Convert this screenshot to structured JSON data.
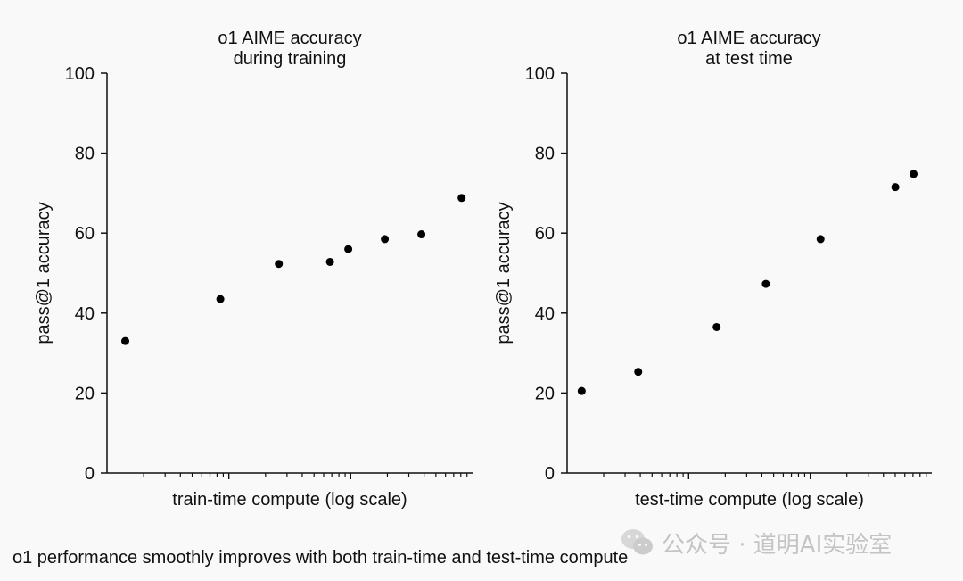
{
  "chart_data": [
    {
      "type": "scatter",
      "title_lines": [
        "o1 AIME accuracy",
        "during training"
      ],
      "xlabel": "train-time compute (log scale)",
      "ylabel": "pass@1 accuracy",
      "ylim": [
        0,
        100
      ],
      "yticks": [
        0,
        20,
        40,
        60,
        80,
        100
      ],
      "x_scale": "log",
      "points": [
        {
          "x": 0.05,
          "y": 33
        },
        {
          "x": 0.31,
          "y": 43.5
        },
        {
          "x": 0.47,
          "y": 52.3
        },
        {
          "x": 0.61,
          "y": 52.8
        },
        {
          "x": 0.66,
          "y": 56
        },
        {
          "x": 0.76,
          "y": 58.5
        },
        {
          "x": 0.86,
          "y": 59.7
        },
        {
          "x": 0.97,
          "y": 68.8
        }
      ],
      "point_color": "#000000"
    },
    {
      "type": "scatter",
      "title_lines": [
        "o1 AIME accuracy",
        "at test time"
      ],
      "xlabel": "test-time compute (log scale)",
      "ylabel": "pass@1 accuracy",
      "ylim": [
        0,
        100
      ],
      "yticks": [
        0,
        20,
        40,
        60,
        80,
        100
      ],
      "x_scale": "log",
      "points": [
        {
          "x": 0.04,
          "y": 20.5
        },
        {
          "x": 0.195,
          "y": 25.3
        },
        {
          "x": 0.41,
          "y": 36.5
        },
        {
          "x": 0.545,
          "y": 47.3
        },
        {
          "x": 0.695,
          "y": 58.5
        },
        {
          "x": 0.9,
          "y": 71.5
        },
        {
          "x": 0.95,
          "y": 74.8
        }
      ],
      "point_color": "#000000"
    }
  ],
  "caption": "o1 performance smoothly improves with both train-time and test-time compute",
  "watermark": {
    "icon": "wechat-icon",
    "text": "公众号 · 道明AI实验室"
  },
  "colors": {
    "background": "#f9f9f9",
    "axis": "#111111",
    "text": "#111111"
  }
}
